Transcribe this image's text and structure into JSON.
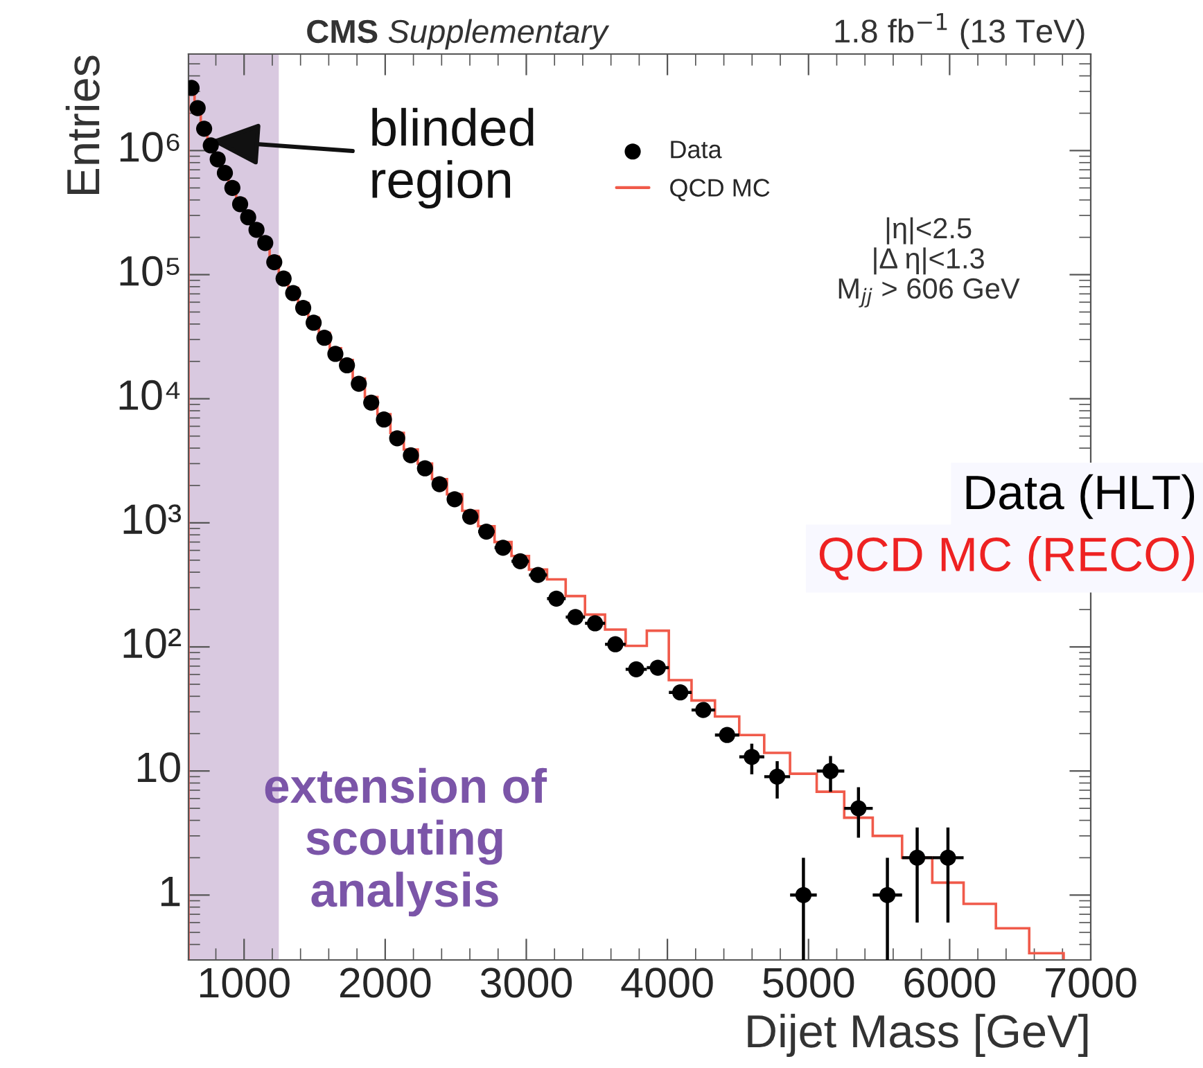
{
  "chart_data": {
    "type": "scatter",
    "title": "CMS Supplementary",
    "subtitle": "1.8 fb$^{−1}$ (13 TeV)",
    "xlabel": "Dijet Mass [GeV]",
    "ylabel": "Entries",
    "log": "y",
    "grid": false,
    "legend": "top right",
    "marker": "circle",
    "xlim": [
      606,
      7000
    ],
    "xticks": [
      1000,
      2000,
      3000,
      4000,
      5000,
      6000,
      7000
    ],
    "ylim": [
      0.3,
      6000000
    ],
    "yticks": [
      1,
      10,
      {
        "value": 100,
        "label": "10²"
      },
      {
        "value": 1000,
        "label": "10³"
      },
      {
        "value": 10000,
        "label": "10⁴"
      },
      {
        "value": 100000,
        "label": "10⁵"
      },
      {
        "value": 1000000,
        "label": "10⁶"
      }
    ],
    "bands": [
      {
        "axis": "x",
        "from": 606,
        "to": 1246,
        "color": "#d9c9e0"
      }
    ],
    "annotations": [
      {
        "text": "blinded\nregion",
        "x": 760,
        "y": 1200000
      },
      "|η|<2.5\n|Δ η|<1.3\nM$_{jj}$ > 606 GeV",
      "extension of\nscouting\nanalysis",
      "Data (HLT)",
      "QCD MC (RECO)"
    ],
    "series": [
      {
        "name": "Data",
        "color": "#000000",
        "x": [
          628,
          671,
          717,
          764,
          813,
          864,
          917,
          972,
          1029,
          1088,
          1150,
          1214,
          1280,
          1348,
          1419,
          1493,
          1569,
          1647,
          1729,
          1813,
          1901,
          1991,
          2085,
          2182,
          2282,
          2385,
          2492,
          2603,
          2717,
          2835,
          2957,
          3083,
          3213,
          3348,
          3487,
          3631,
          3779,
          3932,
          4091,
          4254,
          4423,
          4598,
          4778,
          4964,
          5156,
          5354,
          5559,
          5770,
          5988
        ],
        "values": [
          3200000,
          2200000,
          1500000,
          1100000,
          850000,
          660000,
          500000,
          370000,
          290000,
          230000,
          180000,
          126000,
          93000,
          71000,
          54000,
          41000,
          31000,
          23000,
          18600,
          13200,
          9300,
          6800,
          4800,
          3500,
          2750,
          2050,
          1550,
          1120,
          850,
          630,
          490,
          380,
          245,
          174,
          155,
          105,
          66,
          68,
          43,
          31,
          19.5,
          13,
          9,
          1,
          10,
          5,
          1,
          2,
          2
        ],
        "errors": [
          null,
          null,
          null,
          null,
          null,
          null,
          null,
          null,
          null,
          null,
          null,
          null,
          null,
          null,
          null,
          null,
          null,
          null,
          null,
          null,
          null,
          null,
          null,
          null,
          null,
          null,
          null,
          null,
          null,
          null,
          null,
          null,
          null,
          null,
          null,
          null,
          null,
          null,
          null,
          null,
          null,
          3.6,
          3,
          [
            0.3,
            2
          ],
          3.2,
          [
            2.9,
            7.4
          ],
          [
            0.3,
            2
          ],
          [
            0.6,
            3.5
          ],
          [
            0.6,
            3.5
          ]
        ],
        "xerrors": [
          21.5,
          22,
          23.5,
          24,
          25,
          26,
          27,
          28,
          29,
          30,
          31.5,
          32.5,
          33.5,
          35,
          36,
          37.5,
          38.5,
          40,
          41.5,
          43,
          44.5,
          46,
          47.5,
          49.5,
          50.5,
          53,
          54,
          56.5,
          58,
          60,
          62,
          64,
          66,
          68.5,
          71,
          73,
          75,
          78,
          80.5,
          83,
          86,
          88.5,
          91.5,
          94.5,
          97.5,
          101,
          104,
          107,
          111
        ]
      },
      {
        "name": "QCD MC",
        "type": "histogram",
        "color": "#f05a4a",
        "bins": [
          606,
          649,
          693,
          740,
          788,
          838,
          890,
          944,
          1000,
          1058,
          1118,
          1181,
          1246,
          1313,
          1383,
          1455,
          1530,
          1607,
          1687,
          1770,
          1856,
          1945,
          2037,
          2132,
          2231,
          2332,
          2438,
          2546,
          2659,
          2775,
          2895,
          3019,
          3147,
          3279,
          3416,
          3558,
          3704,
          3854,
          4010,
          4171,
          4337,
          4509,
          4686,
          4869,
          5058,
          5253,
          5455,
          5663,
          5877,
          6099,
          6328,
          6564,
          6808
        ],
        "values": [
          3500000,
          2400000,
          1650000,
          1200000,
          930000,
          720000,
          550000,
          410000,
          320000,
          250000,
          195000,
          140000,
          102000,
          78000,
          59000,
          45000,
          34000,
          25500,
          20500,
          14500,
          10300,
          7500,
          5300,
          3900,
          3000,
          2250,
          1700,
          1250,
          940,
          700,
          540,
          420,
          350,
          257,
          182,
          138,
          102,
          135,
          54,
          37,
          27.5,
          19.5,
          14,
          9.5,
          6.8,
          4.2,
          3.0,
          2.0,
          1.26,
          0.85,
          0.54,
          0.34
        ]
      }
    ]
  }
}
